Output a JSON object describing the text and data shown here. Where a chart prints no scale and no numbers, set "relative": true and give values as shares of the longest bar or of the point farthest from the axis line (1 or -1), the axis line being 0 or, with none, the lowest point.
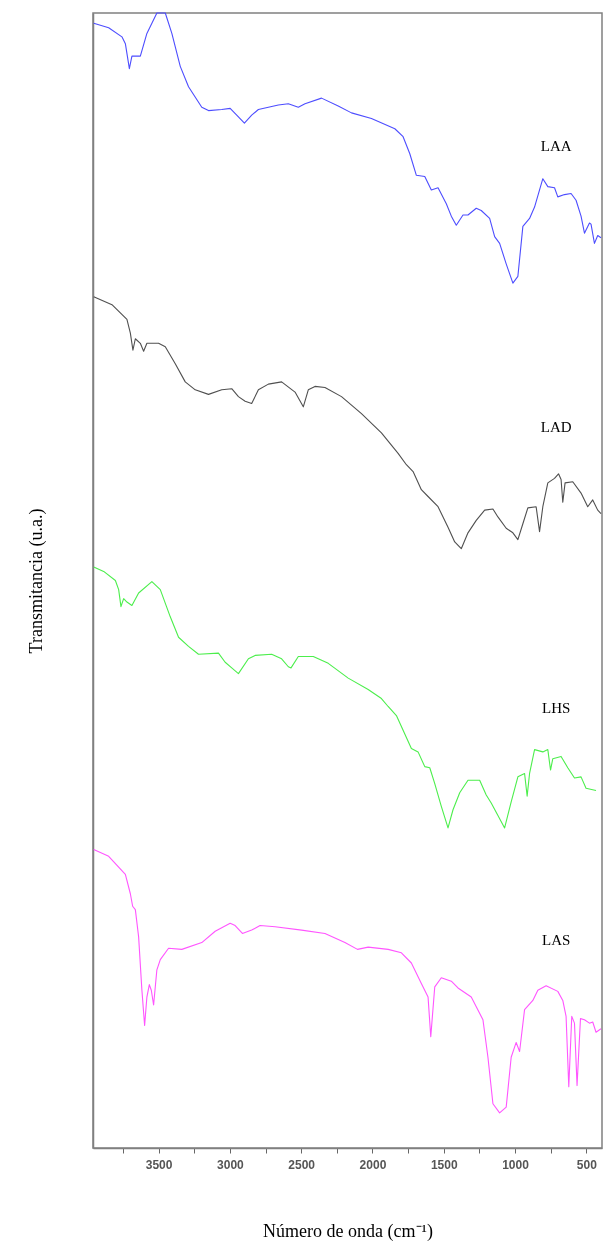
{
  "chart_data": {
    "type": "line",
    "xlabel": "Número de onda (cm⁻¹)",
    "ylabel": "Transmitancia (u.a.)",
    "relative": true,
    "grid": false,
    "xlim": [
      3960,
      390
    ],
    "xticks": [
      {
        "value": 3750,
        "label": null
      },
      3500,
      {
        "value": 3250,
        "label": null
      },
      3000,
      {
        "value": 2750,
        "label": null
      },
      2500,
      {
        "value": 2250,
        "label": null
      },
      2000,
      {
        "value": 1750,
        "label": null
      },
      1500,
      {
        "value": 1250,
        "label": null
      },
      1000,
      {
        "value": 750,
        "label": null
      },
      500
    ],
    "series": [
      {
        "name": "LAA",
        "color": "#4d4dff",
        "x": [
          3955,
          3850,
          3757,
          3733,
          3705,
          3687,
          3628,
          3582,
          3512,
          3453,
          3407,
          3348,
          3290,
          3197,
          3150,
          3057,
          2998,
          2952,
          2898,
          2847,
          2800,
          2660,
          2590,
          2520,
          2473,
          2357,
          2240,
          2147,
          2007,
          1843,
          1785,
          1738,
          1692,
          1633,
          1587,
          1540,
          1482,
          1447,
          1412,
          1365,
          1330,
          1272,
          1237,
          1178,
          1143,
          1108,
          1062,
          1015,
          980,
          945,
          898,
          863,
          805,
          770,
          723,
          700,
          653,
          607,
          572,
          537,
          513,
          478,
          467,
          443,
          420,
          397
        ],
        "values": [
          0.991,
          0.987,
          0.979,
          0.973,
          0.951,
          0.962,
          0.962,
          0.982,
          1.0,
          1.0,
          0.982,
          0.953,
          0.935,
          0.917,
          0.914,
          0.915,
          0.916,
          0.91,
          0.903,
          0.91,
          0.915,
          0.919,
          0.92,
          0.917,
          0.92,
          0.925,
          0.918,
          0.912,
          0.907,
          0.898,
          0.891,
          0.876,
          0.857,
          0.856,
          0.844,
          0.846,
          0.832,
          0.821,
          0.813,
          0.822,
          0.822,
          0.828,
          0.826,
          0.819,
          0.803,
          0.797,
          0.779,
          0.762,
          0.768,
          0.812,
          0.819,
          0.829,
          0.854,
          0.847,
          0.846,
          0.838,
          0.84,
          0.841,
          0.835,
          0.821,
          0.806,
          0.815,
          0.814,
          0.797,
          0.804,
          0.802
        ]
      },
      {
        "name": "LAD",
        "color": "#505050",
        "x": [
          3955,
          3827,
          3722,
          3698,
          3680,
          3663,
          3628,
          3605,
          3582,
          3500,
          3453,
          3383,
          3313,
          3243,
          3150,
          3057,
          2987,
          2940,
          2893,
          2847,
          2800,
          2730,
          2637,
          2543,
          2485,
          2450,
          2403,
          2333,
          2217,
          2077,
          1937,
          1820,
          1762,
          1715,
          1657,
          1610,
          1540,
          1470,
          1423,
          1377,
          1330,
          1272,
          1213,
          1155,
          1120,
          1062,
          1015,
          980,
          945,
          910,
          852,
          828,
          805,
          770,
          723,
          695,
          677,
          665,
          649,
          595,
          537,
          490,
          455,
          420,
          397
        ],
        "values": [
          0.75,
          0.743,
          0.73,
          0.718,
          0.703,
          0.713,
          0.709,
          0.702,
          0.709,
          0.709,
          0.706,
          0.691,
          0.675,
          0.668,
          0.664,
          0.668,
          0.669,
          0.662,
          0.658,
          0.656,
          0.668,
          0.673,
          0.675,
          0.666,
          0.653,
          0.668,
          0.671,
          0.67,
          0.662,
          0.647,
          0.63,
          0.612,
          0.602,
          0.596,
          0.58,
          0.574,
          0.565,
          0.547,
          0.534,
          0.528,
          0.542,
          0.553,
          0.562,
          0.563,
          0.556,
          0.546,
          0.542,
          0.536,
          0.55,
          0.564,
          0.565,
          0.543,
          0.565,
          0.586,
          0.59,
          0.594,
          0.589,
          0.569,
          0.586,
          0.587,
          0.577,
          0.565,
          0.571,
          0.562,
          0.559
        ]
      },
      {
        "name": "LHS",
        "color": "#4cee4c",
        "x": [
          3955,
          3885,
          3803,
          3780,
          3764,
          3745,
          3722,
          3687,
          3640,
          3547,
          3488,
          3418,
          3360,
          3290,
          3220,
          3080,
          3033,
          2987,
          2940,
          2870,
          2823,
          2707,
          2637,
          2590,
          2571,
          2520,
          2415,
          2310,
          2170,
          2030,
          1937,
          1890,
          1832,
          1785,
          1727,
          1680,
          1633,
          1598,
          1563,
          1517,
          1470,
          1435,
          1388,
          1330,
          1248,
          1202,
          1167,
          1120,
          1073,
          1027,
          980,
          933,
          915,
          898,
          863,
          805,
          770,
          751,
          735,
          677,
          630,
          583,
          537,
          502,
          432
        ],
        "values": [
          0.512,
          0.508,
          0.5,
          0.492,
          0.477,
          0.484,
          0.481,
          0.478,
          0.489,
          0.499,
          0.492,
          0.468,
          0.45,
          0.442,
          0.435,
          0.436,
          0.428,
          0.423,
          0.418,
          0.431,
          0.434,
          0.435,
          0.431,
          0.424,
          0.423,
          0.433,
          0.433,
          0.427,
          0.414,
          0.404,
          0.396,
          0.389,
          0.381,
          0.368,
          0.352,
          0.349,
          0.336,
          0.335,
          0.321,
          0.301,
          0.282,
          0.298,
          0.313,
          0.324,
          0.324,
          0.311,
          0.304,
          0.293,
          0.282,
          0.305,
          0.327,
          0.33,
          0.31,
          0.33,
          0.351,
          0.349,
          0.351,
          0.333,
          0.343,
          0.345,
          0.335,
          0.326,
          0.327,
          0.317,
          0.315
        ]
      },
      {
        "name": "LAS",
        "color": "#ff55ff",
        "x": [
          3955,
          3850,
          3733,
          3698,
          3682,
          3663,
          3640,
          3617,
          3598,
          3582,
          3565,
          3551,
          3535,
          3512,
          3488,
          3430,
          3337,
          3197,
          3103,
          2998,
          2963,
          2912,
          2847,
          2788,
          2683,
          2497,
          2333,
          2193,
          2105,
          2030,
          1890,
          1797,
          1727,
          1657,
          1610,
          1591,
          1563,
          1517,
          1447,
          1400,
          1307,
          1225,
          1190,
          1155,
          1108,
          1062,
          1027,
          992,
          968,
          933,
          875,
          840,
          782,
          700,
          665,
          642,
          623,
          602,
          583,
          565,
          541,
          513,
          478,
          455,
          432,
          397
        ],
        "values": [
          0.263,
          0.257,
          0.241,
          0.224,
          0.213,
          0.21,
          0.186,
          0.139,
          0.108,
          0.133,
          0.144,
          0.139,
          0.126,
          0.157,
          0.166,
          0.176,
          0.175,
          0.181,
          0.191,
          0.198,
          0.196,
          0.189,
          0.192,
          0.196,
          0.195,
          0.192,
          0.189,
          0.181,
          0.175,
          0.177,
          0.175,
          0.172,
          0.163,
          0.145,
          0.133,
          0.098,
          0.142,
          0.15,
          0.147,
          0.141,
          0.133,
          0.113,
          0.08,
          0.039,
          0.031,
          0.036,
          0.08,
          0.093,
          0.085,
          0.122,
          0.13,
          0.139,
          0.143,
          0.138,
          0.13,
          0.116,
          0.054,
          0.116,
          0.11,
          0.055,
          0.114,
          0.113,
          0.11,
          0.111,
          0.102,
          0.105
        ]
      }
    ]
  }
}
